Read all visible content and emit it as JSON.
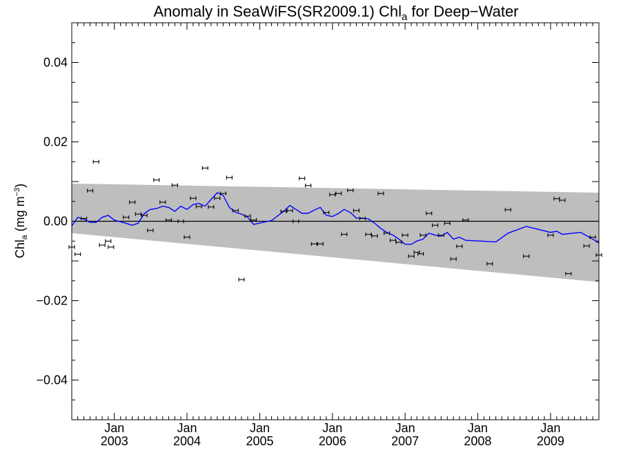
{
  "chart_data": {
    "type": "scatter",
    "title": {
      "prefix": "Anomaly in SeaWiFS(SR2009.1) Chl",
      "subscript": "a",
      "suffix": " for Deep−Water"
    },
    "ylabel": {
      "prefix": "Chl",
      "subscript": "a",
      "middle": " (mg m",
      "superscript": "−3",
      "suffix": ")"
    },
    "x_range": [
      "2002-06-01",
      "2009-09-01"
    ],
    "ylim": [
      -0.05,
      0.05
    ],
    "y_ticks": [
      {
        "value": 0.04,
        "label": "0.04"
      },
      {
        "value": 0.02,
        "label": "0.02"
      },
      {
        "value": 0.0,
        "label": "0.00"
      },
      {
        "value": -0.02,
        "label": "−0.02"
      },
      {
        "value": -0.04,
        "label": "−0.04"
      }
    ],
    "x_ticks": [
      {
        "date": "2003-01-01",
        "month": "Jan",
        "year": "2003"
      },
      {
        "date": "2004-01-01",
        "month": "Jan",
        "year": "2004"
      },
      {
        "date": "2005-01-01",
        "month": "Jan",
        "year": "2005"
      },
      {
        "date": "2006-01-01",
        "month": "Jan",
        "year": "2006"
      },
      {
        "date": "2007-01-01",
        "month": "Jan",
        "year": "2007"
      },
      {
        "date": "2008-01-01",
        "month": "Jan",
        "year": "2008"
      },
      {
        "date": "2009-01-01",
        "month": "Jan",
        "year": "2009"
      }
    ],
    "confidence_band": {
      "color": "#bebebe",
      "upper": [
        [
          "2002-06-01",
          0.0095
        ],
        [
          "2009-09-01",
          0.0072
        ]
      ],
      "lower": [
        [
          "2002-06-01",
          -0.003
        ],
        [
          "2009-09-01",
          -0.0153
        ]
      ]
    },
    "zero_line": {
      "value": 0.0,
      "color": "#000000"
    },
    "series": [
      {
        "kind": "points_with_error_bars",
        "color": "#000000",
        "points": [
          [
            "2002-06-01",
            -0.0065
          ],
          [
            "2002-07-01",
            -0.0083
          ],
          [
            "2002-08-01",
            0.0007
          ],
          [
            "2002-09-01",
            0.0077
          ],
          [
            "2002-10-01",
            0.015
          ],
          [
            "2002-11-01",
            -0.006
          ],
          [
            "2002-12-01",
            -0.005
          ],
          [
            "2002-12-15",
            -0.0065
          ],
          [
            "2003-03-01",
            0.001
          ],
          [
            "2003-04-01",
            0.0048
          ],
          [
            "2003-05-01",
            0.0018
          ],
          [
            "2003-06-01",
            0.0015
          ],
          [
            "2003-07-01",
            -0.0023
          ],
          [
            "2003-08-01",
            0.0104
          ],
          [
            "2003-09-01",
            0.0048
          ],
          [
            "2003-10-01",
            0.0003
          ],
          [
            "2003-11-01",
            0.0091
          ],
          [
            "2003-12-01",
            0.0
          ],
          [
            "2004-01-01",
            -0.004
          ],
          [
            "2004-02-01",
            0.0058
          ],
          [
            "2004-03-01",
            0.0037
          ],
          [
            "2004-04-01",
            0.0134
          ],
          [
            "2004-05-01",
            0.0036
          ],
          [
            "2004-06-01",
            0.0058
          ],
          [
            "2004-07-01",
            0.007
          ],
          [
            "2004-08-01",
            0.011
          ],
          [
            "2004-09-01",
            0.0027
          ],
          [
            "2004-10-01",
            -0.0147
          ],
          [
            "2004-11-01",
            0.0013
          ],
          [
            "2004-12-01",
            0.0003
          ],
          [
            "2005-05-01",
            0.0025
          ],
          [
            "2005-06-01",
            0.0027
          ],
          [
            "2005-07-01",
            0.0
          ],
          [
            "2005-08-01",
            0.0108
          ],
          [
            "2005-09-01",
            0.009
          ],
          [
            "2005-10-01",
            -0.0057
          ],
          [
            "2005-11-01",
            -0.0057
          ],
          [
            "2005-12-01",
            0.0022
          ],
          [
            "2006-01-01",
            0.0067
          ],
          [
            "2006-02-01",
            0.007
          ],
          [
            "2006-03-01",
            -0.0033
          ],
          [
            "2006-04-01",
            0.0078
          ],
          [
            "2006-05-01",
            0.0027
          ],
          [
            "2006-06-01",
            0.0007
          ],
          [
            "2006-07-01",
            -0.0033
          ],
          [
            "2006-08-01",
            -0.0037
          ],
          [
            "2006-09-01",
            0.007
          ],
          [
            "2006-10-01",
            -0.003
          ],
          [
            "2006-11-01",
            -0.0048
          ],
          [
            "2006-12-01",
            -0.0053
          ],
          [
            "2007-01-01",
            -0.0035
          ],
          [
            "2007-02-01",
            -0.0088
          ],
          [
            "2007-03-01",
            -0.0078
          ],
          [
            "2007-03-20",
            -0.0082
          ],
          [
            "2007-04-01",
            -0.0035
          ],
          [
            "2007-05-01",
            0.002
          ],
          [
            "2007-06-01",
            -0.001
          ],
          [
            "2007-07-01",
            -0.0035
          ],
          [
            "2007-08-01",
            -0.0005
          ],
          [
            "2007-09-01",
            -0.0095
          ],
          [
            "2007-10-01",
            -0.0063
          ],
          [
            "2007-11-01",
            0.0003
          ],
          [
            "2008-03-01",
            -0.0107
          ],
          [
            "2008-06-01",
            0.0029
          ],
          [
            "2008-09-01",
            -0.0088
          ],
          [
            "2009-01-01",
            -0.0035
          ],
          [
            "2009-02-01",
            0.0057
          ],
          [
            "2009-03-01",
            0.0053
          ],
          [
            "2009-04-01",
            -0.0132
          ],
          [
            "2009-07-01",
            -0.0062
          ],
          [
            "2009-08-01",
            -0.004
          ],
          [
            "2009-09-01",
            -0.0085
          ]
        ]
      },
      {
        "kind": "running_mean_line",
        "color": "#0000ff",
        "points": [
          [
            "2002-06-01",
            -0.0012
          ],
          [
            "2002-07-01",
            0.001
          ],
          [
            "2002-08-01",
            0.0005
          ],
          [
            "2002-09-01",
            -0.0003
          ],
          [
            "2002-10-01",
            -0.0003
          ],
          [
            "2002-11-01",
            0.001
          ],
          [
            "2002-12-01",
            0.0015
          ],
          [
            "2003-01-01",
            0.0003
          ],
          [
            "2003-03-01",
            -0.0005
          ],
          [
            "2003-04-01",
            -0.001
          ],
          [
            "2003-05-01",
            -0.0005
          ],
          [
            "2003-06-01",
            0.002
          ],
          [
            "2003-07-01",
            0.003
          ],
          [
            "2003-08-01",
            0.0032
          ],
          [
            "2003-09-01",
            0.0038
          ],
          [
            "2003-10-01",
            0.0035
          ],
          [
            "2003-11-01",
            0.0025
          ],
          [
            "2003-12-01",
            0.0038
          ],
          [
            "2004-01-01",
            0.003
          ],
          [
            "2004-02-01",
            0.0042
          ],
          [
            "2004-03-01",
            0.0045
          ],
          [
            "2004-04-01",
            0.0038
          ],
          [
            "2004-05-01",
            0.0055
          ],
          [
            "2004-06-01",
            0.0072
          ],
          [
            "2004-07-01",
            0.0065
          ],
          [
            "2004-08-01",
            0.0035
          ],
          [
            "2004-09-01",
            0.0022
          ],
          [
            "2004-10-01",
            0.0018
          ],
          [
            "2004-11-01",
            0.001
          ],
          [
            "2004-12-01",
            -0.0008
          ],
          [
            "2005-03-01",
            0.0002
          ],
          [
            "2005-05-01",
            0.0025
          ],
          [
            "2005-06-01",
            0.004
          ],
          [
            "2005-07-01",
            0.003
          ],
          [
            "2005-08-01",
            0.002
          ],
          [
            "2005-09-01",
            0.002
          ],
          [
            "2005-10-01",
            0.0028
          ],
          [
            "2005-11-01",
            0.0035
          ],
          [
            "2005-12-01",
            0.0015
          ],
          [
            "2006-01-01",
            0.0012
          ],
          [
            "2006-02-01",
            0.002
          ],
          [
            "2006-03-01",
            0.003
          ],
          [
            "2006-04-01",
            0.0022
          ],
          [
            "2006-05-01",
            0.0008
          ],
          [
            "2006-06-01",
            0.0008
          ],
          [
            "2006-07-01",
            0.0006
          ],
          [
            "2006-08-01",
            -0.0005
          ],
          [
            "2006-09-01",
            -0.0018
          ],
          [
            "2006-10-01",
            -0.0028
          ],
          [
            "2006-11-01",
            -0.0035
          ],
          [
            "2006-12-01",
            -0.0045
          ],
          [
            "2007-01-01",
            -0.0058
          ],
          [
            "2007-02-01",
            -0.0058
          ],
          [
            "2007-03-01",
            -0.005
          ],
          [
            "2007-04-01",
            -0.0045
          ],
          [
            "2007-05-01",
            -0.003
          ],
          [
            "2007-06-01",
            -0.0035
          ],
          [
            "2007-07-01",
            -0.0038
          ],
          [
            "2007-08-01",
            -0.0028
          ],
          [
            "2007-09-01",
            -0.0045
          ],
          [
            "2007-10-01",
            -0.004
          ],
          [
            "2007-11-01",
            -0.0048
          ],
          [
            "2008-04-01",
            -0.0052
          ],
          [
            "2008-06-01",
            -0.003
          ],
          [
            "2008-09-01",
            -0.0013
          ],
          [
            "2009-01-01",
            -0.0028
          ],
          [
            "2009-02-01",
            -0.0025
          ],
          [
            "2009-03-01",
            -0.0033
          ],
          [
            "2009-06-01",
            -0.0028
          ],
          [
            "2009-08-01",
            -0.0045
          ],
          [
            "2009-09-01",
            -0.0055
          ]
        ]
      }
    ],
    "error_bar_half_width_data": 0.0003,
    "grid": false,
    "legend": "none"
  }
}
